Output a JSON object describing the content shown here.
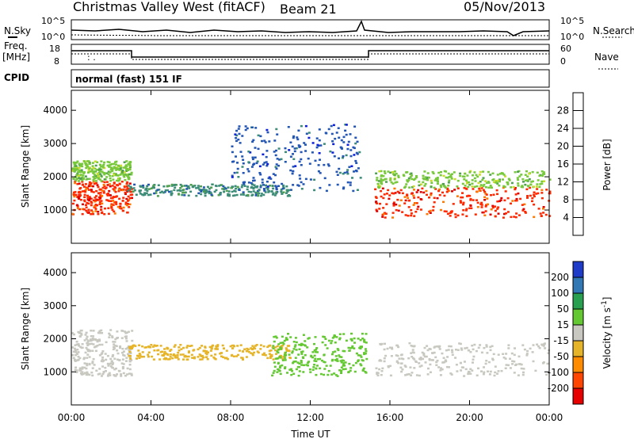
{
  "header": {
    "title": "Christmas Valley West (fitACF)",
    "beam": "Beam 21",
    "date": "05/Nov/2013"
  },
  "status_panels": {
    "nsky_label": "N.Sky",
    "nsearch_label": "N.Search",
    "freq_label_line1": "Freq.",
    "freq_label_line2": "[MHz]",
    "nave_label": "Nave",
    "cpid_label": "CPID",
    "cpid_text": "normal (fast) 151 IF",
    "noise_ticks_left": [
      "10^5",
      "10^0"
    ],
    "noise_ticks_right": [
      "10^5",
      "10^0"
    ],
    "freq_ticks_left": [
      "18",
      "8"
    ],
    "freq_ticks_right": [
      "60",
      "0"
    ]
  },
  "colors": {
    "power": [
      "#0a1edc",
      "#2255b4",
      "#3c8c78",
      "#50a050",
      "#78c83c",
      "#c8dc28",
      "#ffb400",
      "#ff7800",
      "#ff2800",
      "#dc0000"
    ],
    "velocity": [
      "#1e3cc8",
      "#3278b4",
      "#28a050",
      "#64c832",
      "#c8c8c0",
      "#e6b428",
      "#ff8c00",
      "#ff4600",
      "#e60000"
    ]
  },
  "chart_data": [
    {
      "type": "heatmap",
      "name": "power",
      "ylabel": "Slant Range [km]",
      "ylim": [
        0,
        4600
      ],
      "yticks": [
        "1000",
        "2000",
        "3000",
        "4000"
      ],
      "xticks": [
        "00:00",
        "04:00",
        "08:00",
        "12:00",
        "16:00",
        "20:00",
        "00:00"
      ],
      "xlim_hours": [
        0,
        24
      ],
      "colorbar_label": "Power [dB]",
      "colorbar_ticks": [
        "4",
        "8",
        "12",
        "16",
        "20",
        "24",
        "28"
      ],
      "colorbar_range": [
        0,
        32
      ],
      "echo_regions": [
        {
          "t_start": 0.0,
          "t_end": 3.0,
          "r_low": 900,
          "r_high": 1900,
          "level": 26
        },
        {
          "t_start": 0.0,
          "t_end": 3.0,
          "r_low": 1900,
          "r_high": 2500,
          "level": 14
        },
        {
          "t_start": 2.8,
          "t_end": 11.0,
          "r_low": 1450,
          "r_high": 1800,
          "level": 8
        },
        {
          "t_start": 8.0,
          "t_end": 14.5,
          "r_low": 1600,
          "r_high": 3600,
          "level": 6
        },
        {
          "t_start": 15.2,
          "t_end": 24.0,
          "r_low": 800,
          "r_high": 1700,
          "level": 27
        },
        {
          "t_start": 15.2,
          "t_end": 24.0,
          "r_low": 1700,
          "r_high": 2200,
          "level": 15
        }
      ]
    },
    {
      "type": "heatmap",
      "name": "velocity",
      "ylabel": "Slant Range [km]",
      "ylim": [
        0,
        4600
      ],
      "yticks": [
        "1000",
        "2000",
        "3000",
        "4000"
      ],
      "xticks": [
        "00:00",
        "04:00",
        "08:00",
        "12:00",
        "16:00",
        "20:00",
        "00:00"
      ],
      "xlim_hours": [
        0,
        24
      ],
      "xlabel": "Time UT",
      "colorbar_label": "Velocity [m s^-1]",
      "colorbar_ticks": [
        "200",
        "100",
        "50",
        "15",
        "-15",
        "-50",
        "-100",
        "-200"
      ],
      "echo_regions": [
        {
          "t_start": 0.0,
          "t_end": 3.0,
          "r_low": 900,
          "r_high": 2300,
          "velocity": 0
        },
        {
          "t_start": 2.8,
          "t_end": 11.0,
          "r_low": 1400,
          "r_high": 1850,
          "velocity": -40
        },
        {
          "t_start": 10.0,
          "t_end": 14.8,
          "r_low": 900,
          "r_high": 2200,
          "velocity": 40
        },
        {
          "t_start": 15.2,
          "t_end": 24.0,
          "r_low": 900,
          "r_high": 1900,
          "velocity": 0
        }
      ]
    }
  ]
}
